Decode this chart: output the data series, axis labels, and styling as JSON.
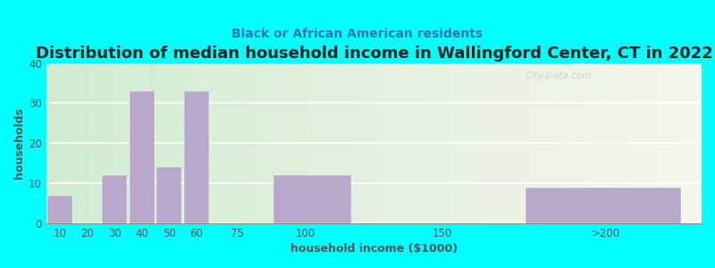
{
  "title": "Distribution of median household income in Wallingford Center, CT in 2022",
  "subtitle": "Black or African American residents",
  "xlabel": "household income ($1000)",
  "ylabel": "households",
  "bar_color": "#b8a8cc",
  "background_outer": "#00ffff",
  "background_left_color": "#d0ecd0",
  "background_right_color": "#f0f0e8",
  "bars": [
    {
      "label": "10",
      "x_left": 5,
      "x_right": 15,
      "height": 7
    },
    {
      "label": "20",
      "x_left": 15,
      "x_right": 25,
      "height": 0
    },
    {
      "label": "30",
      "x_left": 25,
      "x_right": 35,
      "height": 12
    },
    {
      "label": "40",
      "x_left": 35,
      "x_right": 45,
      "height": 33
    },
    {
      "label": "50",
      "x_left": 45,
      "x_right": 55,
      "height": 14
    },
    {
      "label": "60",
      "x_left": 55,
      "x_right": 65,
      "height": 33
    },
    {
      "label": "75",
      "x_left": 65,
      "x_right": 87,
      "height": 0
    },
    {
      "label": "100",
      "x_left": 87,
      "x_right": 118,
      "height": 12
    },
    {
      "label": "150",
      "x_left": 118,
      "x_right": 178,
      "height": 0
    },
    {
      "label": ">200",
      "x_left": 178,
      "x_right": 240,
      "height": 9
    }
  ],
  "xtick_positions": [
    10,
    20,
    30,
    40,
    50,
    60,
    75,
    100,
    150,
    210
  ],
  "xtick_labels": [
    "10",
    "20",
    "30",
    "40",
    "50",
    "60",
    "75",
    "100",
    "150",
    ">200"
  ],
  "xlim": [
    5,
    245
  ],
  "ylim": [
    0,
    40
  ],
  "yticks": [
    0,
    10,
    20,
    30,
    40
  ],
  "title_fontsize": 13,
  "subtitle_fontsize": 10,
  "axis_label_fontsize": 9,
  "tick_fontsize": 8.5,
  "watermark": "City-Data.com"
}
